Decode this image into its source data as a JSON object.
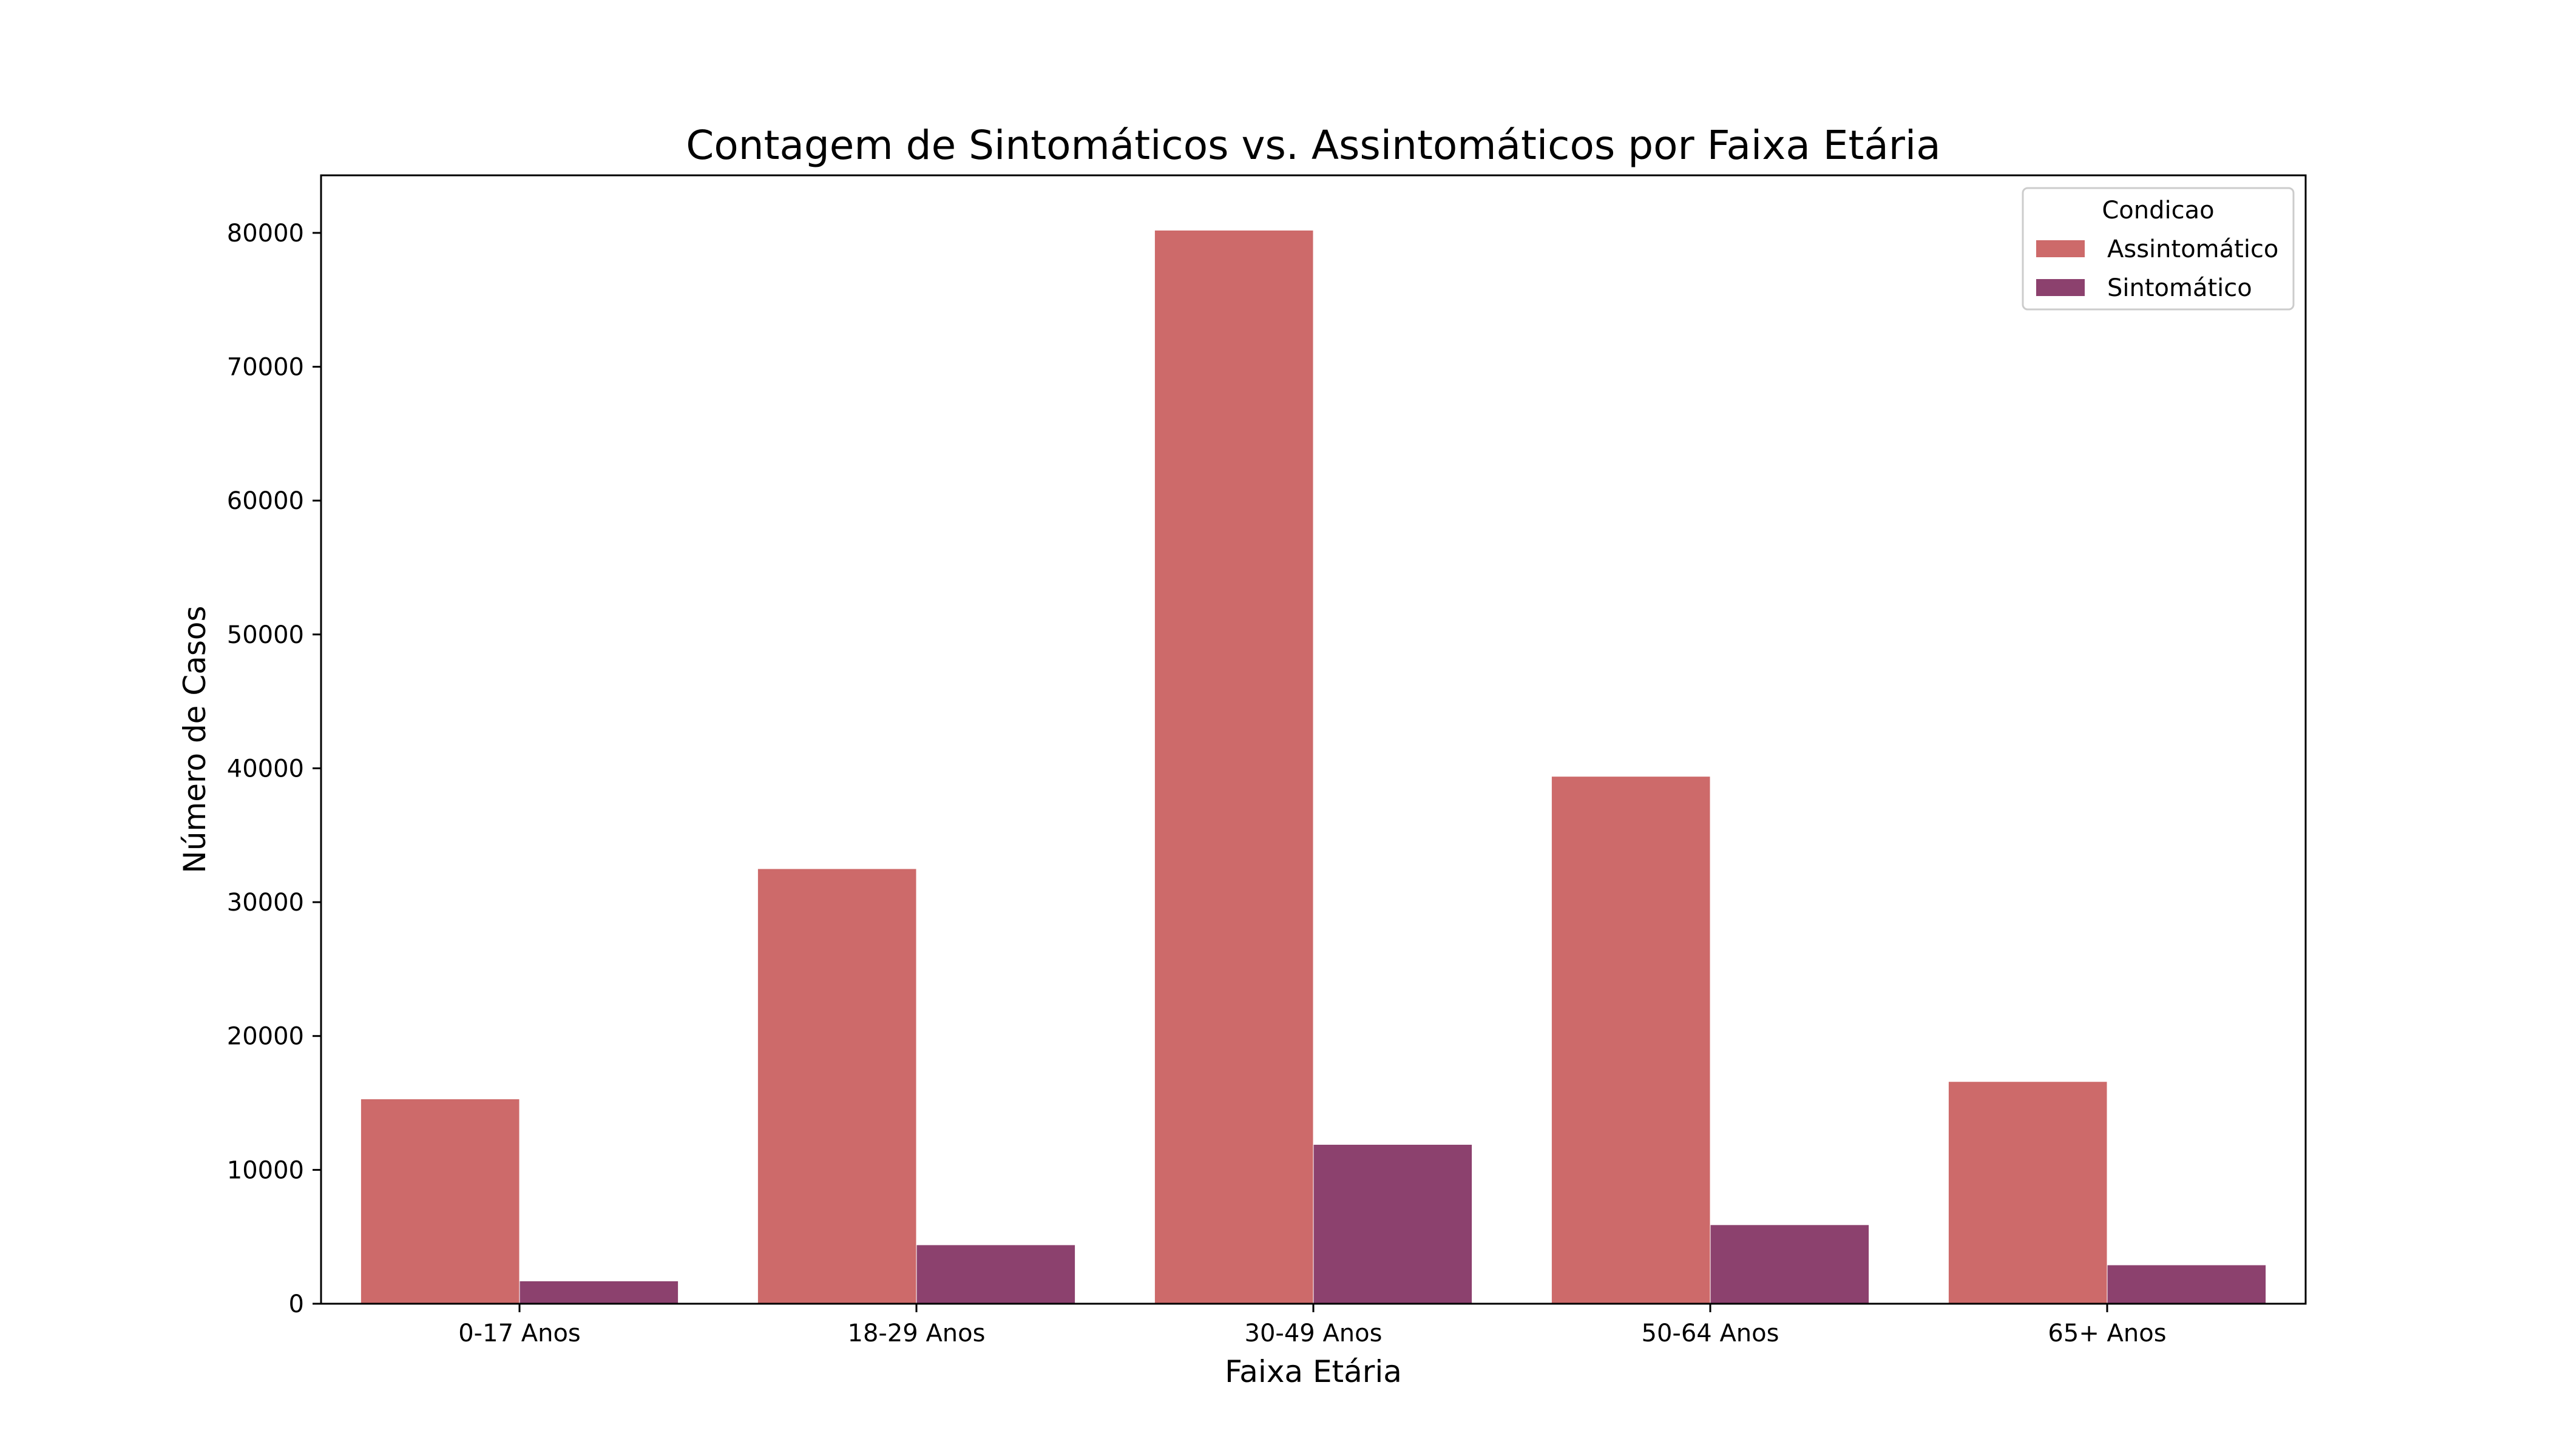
{
  "chart_data": {
    "type": "bar",
    "title": "Contagem de Sintomáticos vs. Assintomáticos por Faixa Etária",
    "xlabel": "Faixa Etária",
    "ylabel": "Número de Casos",
    "categories": [
      "0-17 Anos",
      "18-29 Anos",
      "30-49 Anos",
      "50-64 Anos",
      "65+ Anos"
    ],
    "series": [
      {
        "name": "Assintomático",
        "color": "#cd6a6a",
        "values": [
          15300,
          32500,
          80200,
          39400,
          16600
        ]
      },
      {
        "name": "Sintomático",
        "color": "#8c416e",
        "values": [
          1700,
          4400,
          11900,
          5900,
          2900
        ]
      }
    ],
    "ylim": [
      0,
      84300
    ],
    "yticks": [
      0,
      10000,
      20000,
      30000,
      40000,
      50000,
      60000,
      70000,
      80000
    ],
    "ytick_labels": [
      "0",
      "10000",
      "20000",
      "30000",
      "40000",
      "50000",
      "60000",
      "70000",
      "80000"
    ],
    "legend": {
      "title": "Condicao",
      "placement": "top-right"
    },
    "grid": false
  }
}
